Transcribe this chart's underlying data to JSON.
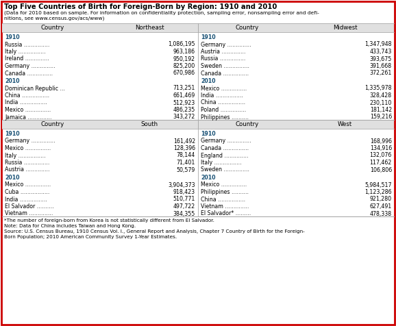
{
  "title": "Top Five Countries of Birth for Foreign-Born by Region: 1910 and 2010",
  "subtitle": "(Data for 2010 based on sample. For information on confidentiality protection, sampling error, nonsampling error and defi-\nnitions, see www.census.gov/acs/www)",
  "header_row": [
    "Country",
    "Northeast",
    "Country",
    "Midwest"
  ],
  "header_row2": [
    "Country",
    "South",
    "Country",
    "West"
  ],
  "northeast_1910": [
    [
      "Russia",
      "1,086,195"
    ],
    [
      "Italy",
      "963,186"
    ],
    [
      "Ireland",
      "950,192"
    ],
    [
      "Germany",
      "825,200"
    ],
    [
      "Canada",
      "670,986"
    ]
  ],
  "northeast_2010": [
    [
      "Dominican Republic",
      "713,251"
    ],
    [
      "China",
      "661,469"
    ],
    [
      "India",
      "512,923"
    ],
    [
      "Mexico",
      "486,235"
    ],
    [
      "Jamaica",
      "343,272"
    ]
  ],
  "midwest_1910": [
    [
      "Germany",
      "1,347,948"
    ],
    [
      "Austria",
      "433,743"
    ],
    [
      "Russia",
      "393,675"
    ],
    [
      "Sweden",
      "391,668"
    ],
    [
      "Canada",
      "372,261"
    ]
  ],
  "midwest_2010": [
    [
      "Mexico",
      "1,335,978"
    ],
    [
      "India",
      "328,428"
    ],
    [
      "China",
      "230,110"
    ],
    [
      "Poland",
      "181,142"
    ],
    [
      "Philippines",
      "159,216"
    ]
  ],
  "south_1910": [
    [
      "Germany",
      "161,492"
    ],
    [
      "Mexico",
      "128,396"
    ],
    [
      "Italy",
      "78,144"
    ],
    [
      "Russia",
      "71,401"
    ],
    [
      "Austria",
      "50,579"
    ]
  ],
  "south_2010": [
    [
      "Mexico",
      "3,904,373"
    ],
    [
      "Cuba",
      "918,423"
    ],
    [
      "India",
      "510,771"
    ],
    [
      "El Salvador",
      "497,722"
    ],
    [
      "Vietnam",
      "384,355"
    ]
  ],
  "west_1910": [
    [
      "Germany",
      "168,996"
    ],
    [
      "Canada",
      "134,916"
    ],
    [
      "England",
      "132,076"
    ],
    [
      "Italy",
      "117,462"
    ],
    [
      "Sweden",
      "106,806"
    ]
  ],
  "west_2010": [
    [
      "Mexico",
      "5,984,517"
    ],
    [
      "Philippines",
      "1,123,286"
    ],
    [
      "China",
      "921,280"
    ],
    [
      "Vietnam",
      "627,491"
    ],
    [
      "El Salvador*",
      "478,338"
    ]
  ],
  "footnote_lines": [
    "*The number of foreign-born from Korea is not statistically different from El Salvador.",
    "Note: Data for China includes Taiwan and Hong Kong.",
    "Source: U.S. Census Bureau, 1910 Census Vol. I., General Report and Analysis, Chapter 7 Country of Birth for the Foreign-",
    "Born Population; 2010 American Community Survey 1-Year Estimates."
  ],
  "border_color": "#cc0000",
  "header_bg": "#e0e0e0",
  "year_color": "#1a5276",
  "text_color": "#000000",
  "bg_color": "#ffffff",
  "fig_width": 5.78,
  "fig_height": 4.76,
  "dpi": 100
}
